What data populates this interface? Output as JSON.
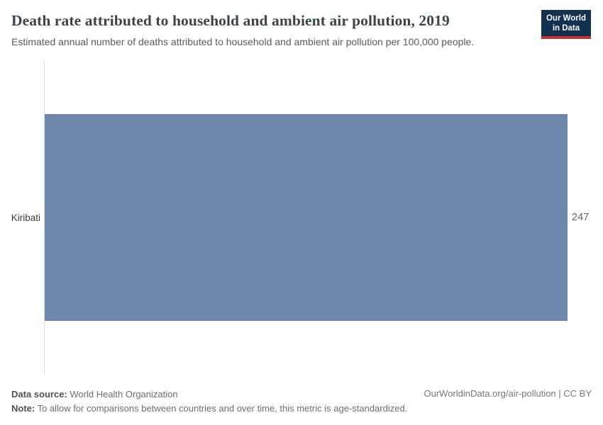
{
  "header": {
    "title": "Death rate attributed to household and ambient air pollution, 2019",
    "subtitle": "Estimated annual number of deaths attributed to household and ambient air pollution per 100,000 people.",
    "logo": {
      "line1": "Our World",
      "line2": "in Data"
    }
  },
  "chart_data": {
    "type": "bar",
    "orientation": "horizontal",
    "title": "Death rate attributed to household and ambient air pollution, 2019",
    "categories": [
      "Kiribati"
    ],
    "values": [
      247
    ],
    "value_labels": [
      "247"
    ],
    "xlim": [
      0,
      247
    ],
    "grid": false,
    "legend": false,
    "bar_color": "#7088b0",
    "axis_color": "#dddddd"
  },
  "footer": {
    "data_source_label": "Data source:",
    "data_source_value": "World Health Organization",
    "note_label": "Note:",
    "note_value": "To allow for comparisons between countries and over time, this metric is age-standardized.",
    "citation": "OurWorldinData.org/air-pollution | CC BY"
  },
  "colors": {
    "title_text": "#3a444d",
    "subtitle_text": "#5b5b5b",
    "logo_bg": "#12304f",
    "logo_accent": "#c0362c",
    "entity_label_text": "#3c3c3c",
    "value_label_text": "#666666"
  }
}
